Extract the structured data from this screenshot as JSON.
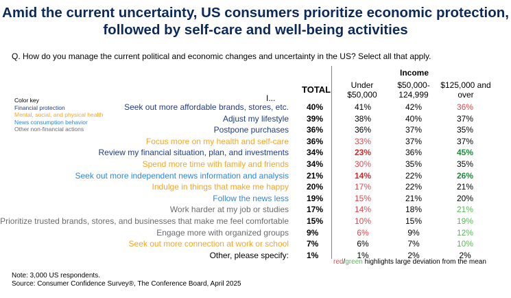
{
  "title": {
    "line1": "Amid the current uncertainty, US consumers prioritize economic protection,",
    "line2": "followed by self-care and well-being activities"
  },
  "question": "Q. How do you manage the current political and economic changes and uncertainty in the US? Select all that apply.",
  "header": {
    "income": "Income",
    "row_label": "I...",
    "total": "TOTAL",
    "col1_line1": "Under",
    "col1_line2": "$50,000",
    "col2_line1": "$50,000-",
    "col2_line2": "124,999",
    "col3_line1": "$125,000 and",
    "col3_line2": "over"
  },
  "color_key": {
    "title": "Color key",
    "financial": "Financial protection",
    "wellbeing": "Mental, social, and physical health",
    "news": "News consumption behavior",
    "other": "Other non-financial actions"
  },
  "colors": {
    "financial": "#1f3c88",
    "wellbeing": "#f5a623",
    "news": "#2e86de",
    "other": "#6b6b6b",
    "black": "#000000",
    "red": "#e0474c",
    "green": "#5cb85c",
    "strong_red": "#d62728",
    "strong_green": "#1e8c3a",
    "title": "#0b2a5b"
  },
  "chart_data": {
    "type": "table",
    "columns": [
      "TOTAL",
      "Under $50,000",
      "$50,000-124,999",
      "$125,000 and over"
    ],
    "rows": [
      {
        "label": "Seek out more affordable brands, stores, etc.",
        "category": "financial",
        "values": [
          "40%",
          "41%",
          "42%",
          "36%"
        ],
        "styles": [
          "",
          "",
          "",
          "red"
        ]
      },
      {
        "label": "Adjust my lifestyle",
        "category": "financial",
        "values": [
          "39%",
          "38%",
          "40%",
          "37%"
        ],
        "styles": [
          "",
          "",
          "",
          ""
        ]
      },
      {
        "label": "Postpone purchases",
        "category": "financial",
        "values": [
          "36%",
          "36%",
          "37%",
          "35%"
        ],
        "styles": [
          "",
          "",
          "",
          ""
        ]
      },
      {
        "label": "Focus more on my health and self-care",
        "category": "wellbeing",
        "values": [
          "36%",
          "33%",
          "37%",
          "37%"
        ],
        "styles": [
          "",
          "red",
          "",
          ""
        ]
      },
      {
        "label": "Review my financial situation, plan, and investments",
        "category": "financial",
        "values": [
          "34%",
          "23%",
          "36%",
          "45%"
        ],
        "styles": [
          "",
          "strong_red",
          "",
          "strong_green"
        ]
      },
      {
        "label": "Spend more time with family and friends",
        "category": "wellbeing",
        "values": [
          "34%",
          "30%",
          "35%",
          "35%"
        ],
        "styles": [
          "",
          "red",
          "",
          ""
        ]
      },
      {
        "label": "Seek out more independent news information and analysis",
        "category": "news",
        "values": [
          "21%",
          "14%",
          "22%",
          "26%"
        ],
        "styles": [
          "",
          "strong_red",
          "",
          "strong_green"
        ]
      },
      {
        "label": "Indulge in things that make me happy",
        "category": "wellbeing",
        "values": [
          "20%",
          "17%",
          "22%",
          "21%"
        ],
        "styles": [
          "",
          "red",
          "",
          ""
        ]
      },
      {
        "label": "Follow the news less",
        "category": "news",
        "values": [
          "19%",
          "15%",
          "21%",
          "20%"
        ],
        "styles": [
          "",
          "red",
          "",
          ""
        ]
      },
      {
        "label": "Work harder at my job or studies",
        "category": "other",
        "values": [
          "17%",
          "14%",
          "18%",
          "21%"
        ],
        "styles": [
          "",
          "red",
          "",
          "green"
        ]
      },
      {
        "label": "Prioritize trusted brands, stores, and businesses that make me feel comfortable",
        "category": "other",
        "values": [
          "15%",
          "10%",
          "15%",
          "19%"
        ],
        "styles": [
          "",
          "red",
          "",
          "green"
        ]
      },
      {
        "label": "Engage more with organized groups",
        "category": "other",
        "values": [
          "9%",
          "6%",
          "9%",
          "12%"
        ],
        "styles": [
          "",
          "red",
          "",
          "green"
        ]
      },
      {
        "label": "Seek out more connection at work or school",
        "category": "wellbeing",
        "values": [
          "7%",
          "6%",
          "7%",
          "10%"
        ],
        "styles": [
          "",
          "",
          "",
          "green"
        ]
      },
      {
        "label": "Other, please specify:",
        "category": "black",
        "values": [
          "1%",
          "1%",
          "2%",
          "2%"
        ],
        "styles": [
          "",
          "",
          "",
          ""
        ]
      }
    ]
  },
  "legend_note": {
    "red": "red",
    "slash": "/",
    "green": "green",
    "rest": " highlights large deviation from the mean"
  },
  "note": "Note: 3,000 US respondents.",
  "source": "Source: Consumer Confidence Survey®, The Conference Board, April 2025"
}
